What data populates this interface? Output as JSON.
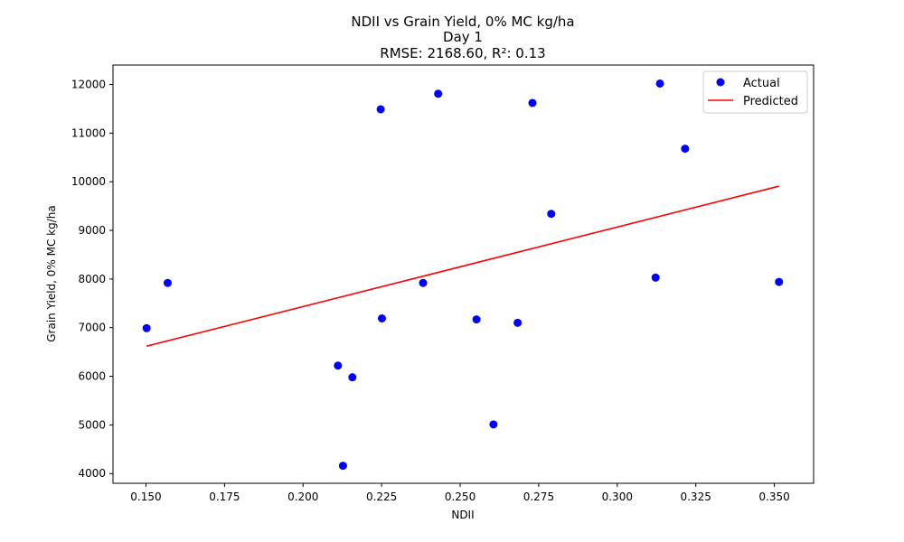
{
  "chart_data": {
    "type": "scatter",
    "title_lines": [
      "NDII vs Grain Yield, 0% MC kg/ha",
      "Day 1",
      "RMSE: 2168.60, R²: 0.13"
    ],
    "xlabel": "NDII",
    "ylabel": "Grain Yield, 0% MC kg/ha",
    "xlim": [
      0.1395,
      0.3625
    ],
    "ylim": [
      3800,
      12400
    ],
    "xticks": [
      0.15,
      0.175,
      0.2,
      0.225,
      0.25,
      0.275,
      0.3,
      0.325,
      0.35
    ],
    "xtick_labels": [
      "0.150",
      "0.175",
      "0.200",
      "0.225",
      "0.250",
      "0.275",
      "0.300",
      "0.325",
      "0.350"
    ],
    "yticks": [
      4000,
      5000,
      6000,
      7000,
      8000,
      9000,
      10000,
      11000,
      12000
    ],
    "ytick_labels": [
      "4000",
      "5000",
      "6000",
      "7000",
      "8000",
      "9000",
      "10000",
      "11000",
      "12000"
    ],
    "grid": false,
    "legend_position": "top-right",
    "series": [
      {
        "name": "Actual",
        "kind": "scatter",
        "color": "#0000ff",
        "points": [
          {
            "x": 0.1502,
            "y": 6990
          },
          {
            "x": 0.1569,
            "y": 7920
          },
          {
            "x": 0.2111,
            "y": 6220
          },
          {
            "x": 0.2127,
            "y": 4160
          },
          {
            "x": 0.2157,
            "y": 5980
          },
          {
            "x": 0.2247,
            "y": 11490
          },
          {
            "x": 0.2251,
            "y": 7190
          },
          {
            "x": 0.2382,
            "y": 7920
          },
          {
            "x": 0.243,
            "y": 11810
          },
          {
            "x": 0.2552,
            "y": 7170
          },
          {
            "x": 0.2606,
            "y": 5010
          },
          {
            "x": 0.2683,
            "y": 7100
          },
          {
            "x": 0.273,
            "y": 11620
          },
          {
            "x": 0.279,
            "y": 9340
          },
          {
            "x": 0.3122,
            "y": 8030
          },
          {
            "x": 0.3136,
            "y": 12020
          },
          {
            "x": 0.3216,
            "y": 10680
          },
          {
            "x": 0.3515,
            "y": 7940
          }
        ]
      },
      {
        "name": "Predicted",
        "kind": "line",
        "color": "#ff0000",
        "points": [
          {
            "x": 0.1502,
            "y": 6620
          },
          {
            "x": 0.3515,
            "y": 9910
          }
        ]
      }
    ]
  }
}
